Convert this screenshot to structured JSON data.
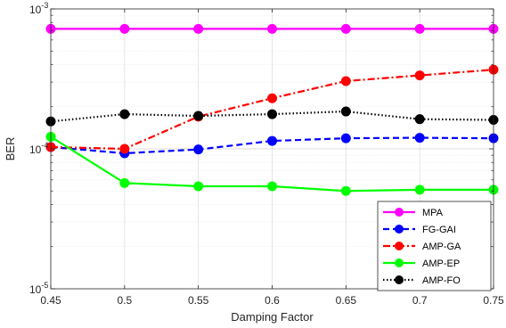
{
  "chart_data": {
    "type": "line",
    "xlabel": "Damping Factor",
    "ylabel": "BER",
    "x": [
      0.45,
      0.5,
      0.55,
      0.6,
      0.65,
      0.7,
      0.75
    ],
    "xlim": [
      0.45,
      0.75
    ],
    "ylim": [
      1e-05,
      0.001
    ],
    "yscale": "log",
    "grid": true,
    "x_tick_labels": [
      "0.45",
      "0.5",
      "0.55",
      "0.6",
      "0.65",
      "0.7",
      "0.75"
    ],
    "y_ticks": [
      {
        "value": 0.001,
        "base": "10",
        "exp": "-3"
      },
      {
        "value": 0.0001,
        "base": "10",
        "exp": "-4"
      },
      {
        "value": 1e-05,
        "base": "10",
        "exp": "-5"
      }
    ],
    "legend_position": "bottom-right",
    "series": [
      {
        "name": "MPA",
        "color": "#ff00ff",
        "dash": "solid",
        "values": [
          0.00072,
          0.00072,
          0.00072,
          0.00072,
          0.00072,
          0.00072,
          0.00072
        ]
      },
      {
        "name": "FG-GAI",
        "color": "#0000ff",
        "dash": "dashed",
        "values": [
          0.000103,
          9.3e-05,
          9.9e-05,
          0.000114,
          0.000119,
          0.00012,
          0.000119
        ]
      },
      {
        "name": "AMP-GA",
        "color": "#ff0000",
        "dash": "dashdot",
        "values": [
          0.000103,
          0.0001,
          0.00017,
          0.00023,
          0.000305,
          0.000335,
          0.000368
        ]
      },
      {
        "name": "AMP-EP",
        "color": "#00ff00",
        "dash": "solid",
        "values": [
          0.000122,
          5.7e-05,
          5.4e-05,
          5.4e-05,
          5e-05,
          5.1e-05,
          5.1e-05
        ]
      },
      {
        "name": "AMP-FO",
        "color": "#000000",
        "dash": "dotted",
        "values": [
          0.000157,
          0.000177,
          0.000172,
          0.000177,
          0.000185,
          0.000163,
          0.000161
        ]
      }
    ]
  }
}
